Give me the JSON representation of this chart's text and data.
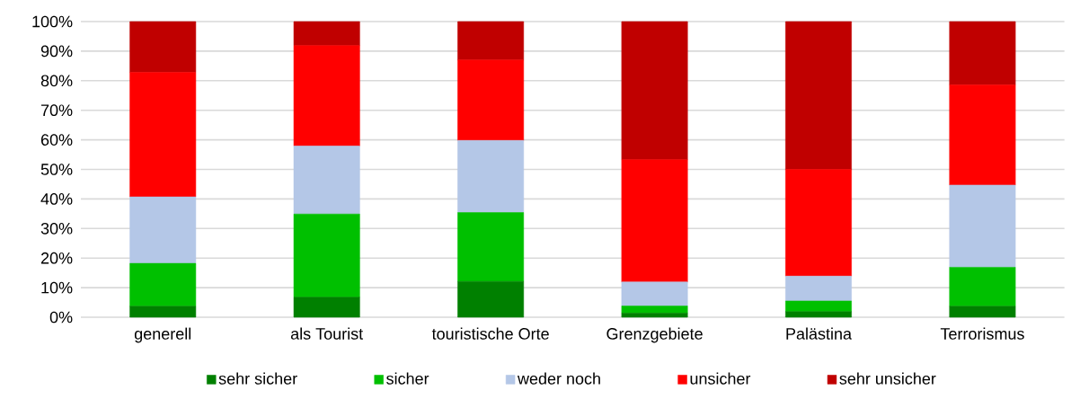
{
  "chart_data": {
    "type": "bar",
    "stacked": true,
    "categories": [
      "generell",
      "als Tourist",
      "touristische Orte",
      "Grenzgebiete",
      "Palästina",
      "Terrorismus"
    ],
    "series": [
      {
        "name": "sehr sicher",
        "color": "#008000",
        "values": [
          3.7,
          6.8,
          12.1,
          1.4,
          1.9,
          3.7
        ]
      },
      {
        "name": "sicher",
        "color": "#00c000",
        "values": [
          14.5,
          28.1,
          23.3,
          2.4,
          3.6,
          13.2
        ]
      },
      {
        "name": "weder noch",
        "color": "#b4c7e7",
        "values": [
          22.5,
          23.0,
          24.4,
          8.1,
          8.4,
          27.8
        ]
      },
      {
        "name": "unsicher",
        "color": "#ff0000",
        "values": [
          42.1,
          34.0,
          27.2,
          41.4,
          36.1,
          33.9
        ]
      },
      {
        "name": "sehr unsicher",
        "color": "#c00000",
        "values": [
          17.2,
          8.1,
          13.0,
          46.7,
          50.0,
          21.4
        ]
      }
    ],
    "ylim": [
      0,
      100
    ],
    "yticks": [
      {
        "value": 0,
        "label": "0%"
      },
      {
        "value": 10,
        "label": "10%"
      },
      {
        "value": 20,
        "label": "20%"
      },
      {
        "value": 30,
        "label": "30%"
      },
      {
        "value": 40,
        "label": "40%"
      },
      {
        "value": 50,
        "label": "50%"
      },
      {
        "value": 60,
        "label": "60%"
      },
      {
        "value": 70,
        "label": "70%"
      },
      {
        "value": 80,
        "label": "80%"
      },
      {
        "value": 90,
        "label": "90%"
      },
      {
        "value": 100,
        "label": "100%"
      }
    ],
    "grid": "y",
    "legend": "bottom"
  }
}
